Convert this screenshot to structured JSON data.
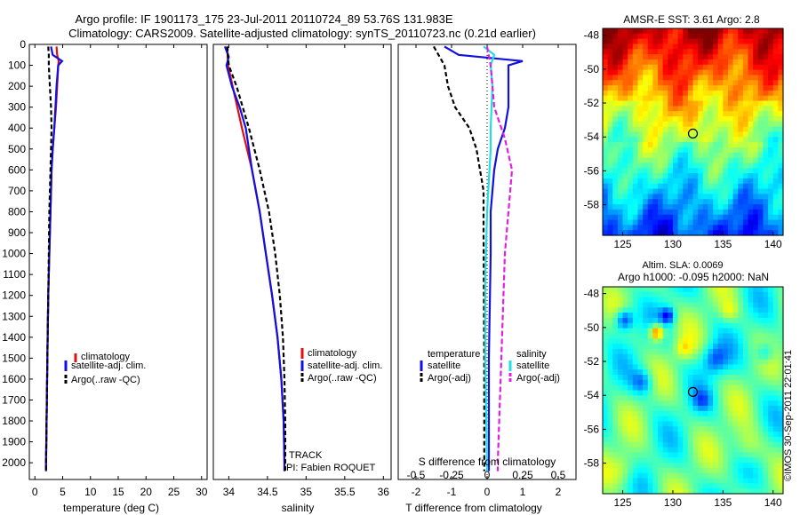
{
  "header": {
    "title_line1": "Argo profile: IF 1901173_175 23-Jul-2011 20110724_89 53.76S 131.983E",
    "title_line2": "Climatology: CARS2009. Satellite-adjusted climatology: synTS_20110723.nc (0.21d earlier)"
  },
  "watermark": "©IMOS 30-Sep-2011 22:01:41",
  "colors": {
    "climatology": "#e01010",
    "satellite_adj": "#1010e0",
    "argo": "#000000",
    "satellite_salinity": "#20e0e0",
    "argo_salinity": "#e020e0"
  },
  "panels": {
    "temperature": {
      "xlabel": "temperature (deg C)",
      "legend": [
        "climatology",
        "satellite-adj. clim.",
        "Argo(..raw -QC)"
      ]
    },
    "salinity": {
      "xlabel": "salinity",
      "legend": [
        "climatology",
        "satellite-adj. clim.",
        "Argo(..raw -QC)"
      ],
      "track_label": "TRACK",
      "pi_label": "PI: Fabien ROQUET"
    },
    "difference": {
      "xlabel": "T difference from climatology",
      "top_label": "S difference from climatology",
      "legend_temp_heading": "temperature",
      "legend_temp_items": [
        "satellite",
        "Argo(-adj)"
      ],
      "legend_sal_heading": "salinity",
      "legend_sal_items": [
        "satellite",
        "Argo(-adj)"
      ]
    },
    "sst_map": {
      "title": "AMSR-E SST: 3.61 Argo: 2.8"
    },
    "sla_map": {
      "title_line1": "Altim. SLA: 0.0069",
      "title_line2": "Argo h1000: -0.095 h2000: NaN"
    }
  },
  "chart_data": [
    {
      "type": "line",
      "name": "temperature profile",
      "xlabel": "temperature (deg C)",
      "ylabel": "",
      "xlim": [
        -1,
        31
      ],
      "ylim": [
        2080,
        0
      ],
      "xticks": [
        0,
        5,
        10,
        15,
        20,
        25,
        30
      ],
      "yticks": [
        0,
        100,
        200,
        300,
        400,
        500,
        600,
        700,
        800,
        900,
        1000,
        1100,
        1200,
        1300,
        1400,
        1500,
        1600,
        1700,
        1800,
        1900,
        2000
      ],
      "series": [
        {
          "name": "climatology",
          "color": "#e01010",
          "dash": "",
          "points": [
            [
              3.9,
              10
            ],
            [
              4.0,
              50
            ],
            [
              4.3,
              80
            ],
            [
              4.2,
              100
            ],
            [
              4.0,
              200
            ],
            [
              3.8,
              300
            ],
            [
              3.5,
              400
            ],
            [
              3.2,
              500
            ],
            [
              3.0,
              600
            ],
            [
              2.8,
              800
            ],
            [
              2.6,
              1000
            ],
            [
              2.4,
              1200
            ],
            [
              2.3,
              1400
            ],
            [
              2.2,
              1600
            ],
            [
              2.1,
              1800
            ],
            [
              2.0,
              2000
            ],
            [
              2.0,
              2040
            ]
          ]
        },
        {
          "name": "satellite-adj. clim.",
          "color": "#1010e0",
          "dash": "",
          "points": [
            [
              2.9,
              10
            ],
            [
              3.2,
              50
            ],
            [
              4.9,
              80
            ],
            [
              4.2,
              100
            ],
            [
              3.9,
              200
            ],
            [
              3.7,
              300
            ],
            [
              3.5,
              400
            ],
            [
              3.2,
              500
            ],
            [
              3.0,
              600
            ],
            [
              2.8,
              800
            ],
            [
              2.6,
              1000
            ],
            [
              2.4,
              1200
            ],
            [
              2.3,
              1400
            ],
            [
              2.2,
              1600
            ],
            [
              2.1,
              1800
            ],
            [
              2.0,
              2000
            ],
            [
              2.0,
              2040
            ]
          ]
        },
        {
          "name": "Argo(..raw -QC)",
          "color": "#000000",
          "dash": "5,3",
          "points": [
            [
              2.4,
              10
            ],
            [
              2.5,
              50
            ],
            [
              2.5,
              100
            ],
            [
              2.7,
              200
            ],
            [
              2.9,
              300
            ],
            [
              3.0,
              400
            ],
            [
              2.9,
              500
            ],
            [
              2.8,
              600
            ],
            [
              2.6,
              800
            ],
            [
              2.5,
              1000
            ],
            [
              2.4,
              1200
            ],
            [
              2.3,
              1400
            ],
            [
              2.2,
              1600
            ],
            [
              2.1,
              1800
            ],
            [
              2.0,
              2000
            ],
            [
              2.0,
              2040
            ]
          ]
        }
      ]
    },
    {
      "type": "line",
      "name": "salinity profile",
      "xlabel": "salinity",
      "ylabel": "",
      "xlim": [
        33.8,
        36.1
      ],
      "ylim": [
        2080,
        0
      ],
      "xticks": [
        34,
        34.5,
        35,
        35.5,
        36
      ],
      "series": [
        {
          "name": "climatology",
          "color": "#e01010",
          "dash": "",
          "points": [
            [
              33.98,
              10
            ],
            [
              33.99,
              100
            ],
            [
              34.05,
              200
            ],
            [
              34.17,
              400
            ],
            [
              34.3,
              600
            ],
            [
              34.4,
              800
            ],
            [
              34.48,
              1000
            ],
            [
              34.56,
              1200
            ],
            [
              34.63,
              1400
            ],
            [
              34.68,
              1600
            ],
            [
              34.71,
              1800
            ],
            [
              34.72,
              2000
            ],
            [
              34.72,
              2040
            ]
          ]
        },
        {
          "name": "satellite-adj. clim.",
          "color": "#1010e0",
          "dash": "",
          "points": [
            [
              33.95,
              10
            ],
            [
              34.0,
              60
            ],
            [
              33.97,
              100
            ],
            [
              34.04,
              200
            ],
            [
              34.14,
              300
            ],
            [
              34.22,
              400
            ],
            [
              34.3,
              600
            ],
            [
              34.4,
              800
            ],
            [
              34.48,
              1000
            ],
            [
              34.56,
              1200
            ],
            [
              34.63,
              1400
            ],
            [
              34.68,
              1600
            ],
            [
              34.71,
              1800
            ],
            [
              34.72,
              2000
            ],
            [
              34.72,
              2040
            ]
          ]
        },
        {
          "name": "Argo(..raw -QC)",
          "color": "#000000",
          "dash": "5,3",
          "points": [
            [
              33.98,
              10
            ],
            [
              34.0,
              100
            ],
            [
              34.1,
              200
            ],
            [
              34.26,
              400
            ],
            [
              34.4,
              600
            ],
            [
              34.52,
              800
            ],
            [
              34.6,
              1000
            ],
            [
              34.66,
              1200
            ],
            [
              34.7,
              1400
            ],
            [
              34.72,
              1600
            ],
            [
              34.73,
              1800
            ],
            [
              34.73,
              2000
            ],
            [
              34.73,
              2040
            ]
          ]
        }
      ]
    },
    {
      "type": "line",
      "name": "difference from climatology",
      "xlabel": "T difference from climatology",
      "x2label": "S difference from climatology",
      "xlim": [
        -2.5,
        2.5
      ],
      "ylim": [
        2080,
        0
      ],
      "xticks": [
        -2,
        -1,
        0,
        1,
        2
      ],
      "x2ticks": [
        -0.5,
        -0.25,
        0,
        0.25,
        0.5
      ],
      "series": [
        {
          "name": "temperature satellite",
          "color": "#1010e0",
          "dash": "",
          "points": [
            [
              -1.2,
              10
            ],
            [
              -0.8,
              50
            ],
            [
              1.0,
              80
            ],
            [
              0.6,
              100
            ],
            [
              0.6,
              300
            ],
            [
              0.5,
              400
            ],
            [
              0.3,
              500
            ],
            [
              0.2,
              600
            ],
            [
              0.1,
              800
            ],
            [
              0.1,
              1000
            ],
            [
              0.05,
              1500
            ],
            [
              0.05,
              2040
            ]
          ]
        },
        {
          "name": "temperature Argo(-adj)",
          "color": "#000000",
          "dash": "5,3",
          "points": [
            [
              -1.5,
              10
            ],
            [
              -1.2,
              100
            ],
            [
              -1.1,
              200
            ],
            [
              -0.9,
              300
            ],
            [
              -0.5,
              400
            ],
            [
              -0.3,
              500
            ],
            [
              -0.1,
              700
            ],
            [
              -0.1,
              900
            ],
            [
              -0.08,
              1500
            ],
            [
              -0.08,
              2040
            ]
          ]
        },
        {
          "name": "salinity satellite",
          "color": "#20e0e0",
          "dash": "",
          "points": [
            [
              -0.1,
              10
            ],
            [
              0.2,
              50
            ],
            [
              0.1,
              100
            ],
            [
              0.15,
              200
            ],
            [
              0.1,
              400
            ],
            [
              0.1,
              500
            ],
            [
              0.0,
              800
            ],
            [
              -0.05,
              1100
            ],
            [
              -0.05,
              1500
            ],
            [
              0.0,
              2040
            ]
          ]
        },
        {
          "name": "salinity Argo(-adj)",
          "color": "#e020e0",
          "dash": "6,3",
          "points": [
            [
              0.0,
              10
            ],
            [
              0.1,
              100
            ],
            [
              0.2,
              300
            ],
            [
              0.5,
              450
            ],
            [
              0.7,
              600
            ],
            [
              0.6,
              800
            ],
            [
              0.5,
              1000
            ],
            [
              0.4,
              1500
            ],
            [
              0.3,
              2000
            ],
            [
              0.3,
              2040
            ]
          ]
        }
      ]
    },
    {
      "type": "heatmap",
      "name": "AMSR-E SST map",
      "title": "AMSR-E SST: 3.61 Argo: 2.8",
      "xlim": [
        123,
        141
      ],
      "ylim": [
        -59.8,
        -47.6
      ],
      "xticks": [
        125,
        130,
        135,
        140
      ],
      "yticks": [
        -48,
        -50,
        -52,
        -54,
        -56,
        -58
      ],
      "marker": {
        "x": 132,
        "y": -53.8
      }
    },
    {
      "type": "heatmap",
      "name": "Altimeter SLA map",
      "title": "Altim. SLA: 0.0069",
      "xlim": [
        123,
        141
      ],
      "ylim": [
        -59.8,
        -47.6
      ],
      "xticks": [
        125,
        130,
        135,
        140
      ],
      "yticks": [
        -48,
        -50,
        -52,
        -54,
        -56,
        -58
      ],
      "marker": {
        "x": 132,
        "y": -53.8
      }
    }
  ]
}
